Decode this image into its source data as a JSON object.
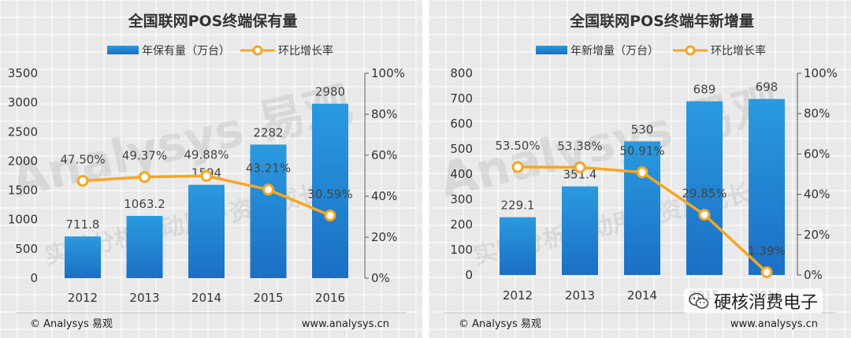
{
  "chart_data": [
    {
      "type": "bar",
      "title": "全国联网POS终端保有量",
      "categories": [
        "2012",
        "2013",
        "2014",
        "2015",
        "2016"
      ],
      "series": [
        {
          "name": "年保有量（万台）",
          "type": "bar",
          "axis": "left",
          "values": [
            711.8,
            1063.2,
            1594,
            2282,
            2980
          ],
          "labels": [
            "711.8",
            "1063.2",
            "1594",
            "2282",
            "2980"
          ]
        },
        {
          "name": "环比增长率",
          "type": "line",
          "axis": "right",
          "values": [
            47.5,
            49.37,
            49.88,
            43.21,
            30.59
          ],
          "labels": [
            "47.50%",
            "49.37%",
            "49.88%",
            "43.21%",
            "30.59%"
          ]
        }
      ],
      "y_left": {
        "min": 0,
        "max": 3500,
        "ticks": [
          "0",
          "500",
          "1000",
          "1500",
          "2000",
          "2500",
          "3000",
          "3500"
        ]
      },
      "y_right": {
        "min": 0,
        "max": 100,
        "ticks": [
          "0%",
          "20%",
          "40%",
          "60%",
          "80%",
          "100%"
        ]
      },
      "legend": "top",
      "grid": true
    },
    {
      "type": "bar",
      "title": "全国联网POS终端年新增量",
      "categories": [
        "2012",
        "2013",
        "2014",
        "2015",
        "2016"
      ],
      "series": [
        {
          "name": "年新增量（万台）",
          "type": "bar",
          "axis": "left",
          "values": [
            229.1,
            351.4,
            530,
            689,
            698
          ],
          "labels": [
            "229.1",
            "351.4",
            "530",
            "689",
            "698"
          ]
        },
        {
          "name": "环比增长率",
          "type": "line",
          "axis": "right",
          "values": [
            53.5,
            53.38,
            50.91,
            29.85,
            1.39
          ],
          "labels": [
            "53.50%",
            "53.38%",
            "50.91%",
            "29.85%",
            "1.39%"
          ]
        }
      ],
      "y_left": {
        "min": 0,
        "max": 800,
        "ticks": [
          "0",
          "100",
          "200",
          "300",
          "400",
          "500",
          "600",
          "700",
          "800"
        ]
      },
      "y_right": {
        "min": 0,
        "max": 100,
        "ticks": [
          "0%",
          "20%",
          "40%",
          "60%",
          "80%",
          "100%"
        ]
      },
      "legend": "top",
      "grid": true
    }
  ],
  "footer": {
    "source": "© Analysys 易观",
    "url": "www.analysys.cn"
  },
  "watermark": {
    "text": "Analysys 易观",
    "subtext": "实时分析驱动用户资产成长"
  },
  "wechat": {
    "label": "硬核消费电子"
  },
  "colors": {
    "bar_top": "#2a9ae0",
    "bar_bottom": "#1b6fc4",
    "line": "#f5a623",
    "background": "#e9e9e9"
  }
}
